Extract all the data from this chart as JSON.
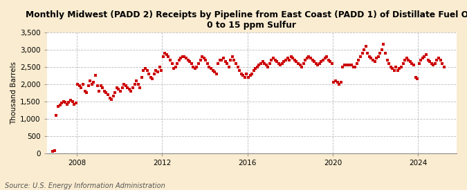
{
  "title": "Monthly Midwest (PADD 2) Receipts by Pipeline from East Coast (PADD 1) of Distillate Fuel Oil,\n0 to 15 ppm Sulfur",
  "ylabel": "Thousand Barrels",
  "source": "Source: U.S. Energy Information Administration",
  "fig_background_color": "#faecd0",
  "plot_background_color": "#ffffff",
  "dot_color": "#cc0000",
  "ylim": [
    0,
    3500
  ],
  "yticks": [
    0,
    500,
    1000,
    1500,
    2000,
    2500,
    3000,
    3500
  ],
  "ytick_labels": [
    "0",
    "500",
    "1,000",
    "1,500",
    "2,000",
    "2,500",
    "3,000",
    "3,500"
  ],
  "xticks": [
    2008,
    2012,
    2016,
    2020,
    2024
  ],
  "xlim_start": 2006.6,
  "xlim_end": 2025.8,
  "title_fontsize": 8.8,
  "axis_fontsize": 7.5,
  "ylabel_fontsize": 7.5,
  "source_fontsize": 7.0,
  "dot_size": 7,
  "data_years": [
    2006,
    2006,
    2007,
    2007,
    2007,
    2007,
    2007,
    2007,
    2007,
    2007,
    2007,
    2007,
    2007,
    2007,
    2008,
    2008,
    2008,
    2008,
    2008,
    2008,
    2008,
    2008,
    2008,
    2008,
    2008,
    2008,
    2009,
    2009,
    2009,
    2009,
    2009,
    2009,
    2009,
    2009,
    2009,
    2009,
    2009,
    2009,
    2010,
    2010,
    2010,
    2010,
    2010,
    2010,
    2010,
    2010,
    2010,
    2010,
    2010,
    2010,
    2011,
    2011,
    2011,
    2011,
    2011,
    2011,
    2011,
    2011,
    2011,
    2011,
    2011,
    2011,
    2012,
    2012,
    2012,
    2012,
    2012,
    2012,
    2012,
    2012,
    2012,
    2012,
    2012,
    2012,
    2013,
    2013,
    2013,
    2013,
    2013,
    2013,
    2013,
    2013,
    2013,
    2013,
    2013,
    2013,
    2014,
    2014,
    2014,
    2014,
    2014,
    2014,
    2014,
    2014,
    2014,
    2014,
    2014,
    2014,
    2015,
    2015,
    2015,
    2015,
    2015,
    2015,
    2015,
    2015,
    2015,
    2015,
    2015,
    2015,
    2016,
    2016,
    2016,
    2016,
    2016,
    2016,
    2016,
    2016,
    2016,
    2016,
    2016,
    2016,
    2017,
    2017,
    2017,
    2017,
    2017,
    2017,
    2017,
    2017,
    2017,
    2017,
    2017,
    2017,
    2018,
    2018,
    2018,
    2018,
    2018,
    2018,
    2018,
    2018,
    2018,
    2018,
    2018,
    2018,
    2019,
    2019,
    2019,
    2019,
    2019,
    2019,
    2019,
    2019,
    2019,
    2019,
    2019,
    2019,
    2020,
    2020,
    2020,
    2020,
    2020,
    2020,
    2020,
    2020,
    2020,
    2020,
    2020,
    2020,
    2021,
    2021,
    2021,
    2021,
    2021,
    2021,
    2021,
    2021,
    2021,
    2021,
    2021,
    2021,
    2022,
    2022,
    2022,
    2022,
    2022,
    2022,
    2022,
    2022,
    2022,
    2022,
    2022,
    2022,
    2023,
    2023,
    2023,
    2023,
    2023,
    2023,
    2023,
    2023,
    2023,
    2023,
    2023,
    2023,
    2024,
    2024,
    2024,
    2024,
    2024,
    2024,
    2024,
    2024,
    2024,
    2024,
    2024,
    2024,
    2025,
    2025,
    2025
  ],
  "data_months": [
    11,
    12,
    1,
    2,
    3,
    4,
    5,
    6,
    7,
    8,
    9,
    10,
    11,
    12,
    1,
    2,
    3,
    4,
    5,
    6,
    7,
    8,
    9,
    10,
    11,
    12,
    1,
    2,
    3,
    4,
    5,
    6,
    7,
    8,
    9,
    10,
    11,
    12,
    1,
    2,
    3,
    4,
    5,
    6,
    7,
    8,
    9,
    10,
    11,
    12,
    1,
    2,
    3,
    4,
    5,
    6,
    7,
    8,
    9,
    10,
    11,
    12,
    1,
    2,
    3,
    4,
    5,
    6,
    7,
    8,
    9,
    10,
    11,
    12,
    1,
    2,
    3,
    4,
    5,
    6,
    7,
    8,
    9,
    10,
    11,
    12,
    1,
    2,
    3,
    4,
    5,
    6,
    7,
    8,
    9,
    10,
    11,
    12,
    1,
    2,
    3,
    4,
    5,
    6,
    7,
    8,
    9,
    10,
    11,
    12,
    1,
    2,
    3,
    4,
    5,
    6,
    7,
    8,
    9,
    10,
    11,
    12,
    1,
    2,
    3,
    4,
    5,
    6,
    7,
    8,
    9,
    10,
    11,
    12,
    1,
    2,
    3,
    4,
    5,
    6,
    7,
    8,
    9,
    10,
    11,
    12,
    1,
    2,
    3,
    4,
    5,
    6,
    7,
    8,
    9,
    10,
    11,
    12,
    1,
    2,
    3,
    4,
    5,
    6,
    7,
    8,
    9,
    10,
    11,
    12,
    1,
    2,
    3,
    4,
    5,
    6,
    7,
    8,
    9,
    10,
    11,
    12,
    1,
    2,
    3,
    4,
    5,
    6,
    7,
    8,
    9,
    10,
    11,
    12,
    1,
    2,
    3,
    4,
    5,
    6,
    7,
    8,
    9,
    10,
    11,
    12,
    1,
    2,
    3,
    4,
    5,
    6,
    7,
    8,
    9,
    10,
    11,
    12,
    1,
    2,
    3
  ],
  "values": [
    50,
    80,
    1100,
    1350,
    1400,
    1450,
    1500,
    1480,
    1420,
    1480,
    1530,
    1500,
    1420,
    1450,
    2000,
    1950,
    1900,
    2000,
    1800,
    1750,
    1950,
    2100,
    2000,
    2050,
    2250,
    1950,
    1800,
    1950,
    1900,
    1800,
    1750,
    1700,
    1600,
    1550,
    1650,
    1750,
    1900,
    1850,
    1800,
    1900,
    2000,
    1950,
    1900,
    1850,
    1800,
    1900,
    2000,
    2100,
    2000,
    1900,
    2200,
    2400,
    2450,
    2400,
    2300,
    2200,
    2150,
    2300,
    2400,
    2350,
    2500,
    2400,
    2800,
    2900,
    2850,
    2800,
    2700,
    2600,
    2450,
    2500,
    2600,
    2700,
    2750,
    2800,
    2800,
    2750,
    2700,
    2650,
    2600,
    2500,
    2450,
    2500,
    2600,
    2700,
    2800,
    2750,
    2700,
    2600,
    2500,
    2450,
    2400,
    2350,
    2300,
    2600,
    2700,
    2700,
    2750,
    2650,
    2600,
    2500,
    2700,
    2800,
    2700,
    2600,
    2500,
    2400,
    2300,
    2250,
    2200,
    2300,
    2200,
    2250,
    2300,
    2400,
    2450,
    2500,
    2550,
    2600,
    2650,
    2600,
    2550,
    2500,
    2600,
    2700,
    2750,
    2700,
    2650,
    2600,
    2550,
    2600,
    2650,
    2700,
    2750,
    2700,
    2800,
    2750,
    2700,
    2650,
    2600,
    2550,
    2500,
    2600,
    2700,
    2750,
    2800,
    2750,
    2700,
    2650,
    2600,
    2550,
    2600,
    2650,
    2700,
    2750,
    2800,
    2700,
    2650,
    2600,
    2050,
    2100,
    2050,
    2000,
    2050,
    2500,
    2550,
    2550,
    2550,
    2550,
    2550,
    2500,
    2500,
    2600,
    2700,
    2800,
    2900,
    3000,
    3100,
    2900,
    2800,
    2750,
    2700,
    2650,
    2750,
    2800,
    2900,
    3000,
    3150,
    2900,
    2700,
    2600,
    2500,
    2450,
    2400,
    2500,
    2400,
    2450,
    2500,
    2600,
    2700,
    2750,
    2700,
    2650,
    2600,
    2550,
    2200,
    2150,
    2600,
    2700,
    2750,
    2800,
    2850,
    2700,
    2650,
    2600,
    2550,
    2600,
    2700,
    2750,
    2700,
    2600,
    2500
  ]
}
